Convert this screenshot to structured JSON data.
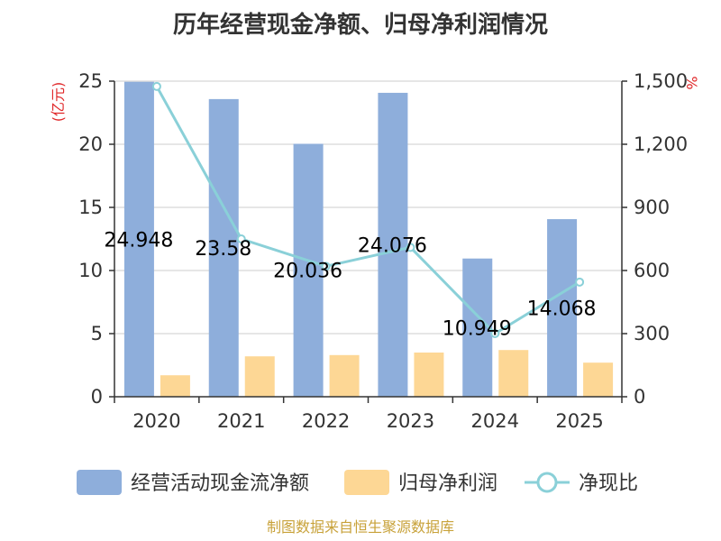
{
  "chart_data": {
    "type": "bar",
    "title": "历年经营现金净额、归母净利润情况",
    "categories": [
      "2020",
      "2021",
      "2022",
      "2023",
      "2024",
      "2025"
    ],
    "y_left": {
      "unit": "(亿元)",
      "range": [
        0,
        25
      ],
      "ticks": [
        "0",
        "5",
        "10",
        "15",
        "20",
        "25"
      ]
    },
    "y_right": {
      "unit": "%",
      "range": [
        0,
        1500
      ],
      "ticks": [
        "0",
        "300",
        "600",
        "900",
        "1,200",
        "1,500"
      ]
    },
    "series": [
      {
        "name": "经营活动现金流净额",
        "type": "bar",
        "axis": "left",
        "color": "#8eaedb",
        "values": [
          24.948,
          23.58,
          20.036,
          24.076,
          10.949,
          14.068
        ],
        "labels": [
          "24.948",
          "23.58",
          "20.036",
          "24.076",
          "10.949",
          "14.068"
        ]
      },
      {
        "name": "归母净利润",
        "type": "bar",
        "axis": "left",
        "color": "#fdd795",
        "values": [
          1.7,
          3.2,
          3.3,
          3.5,
          3.7,
          2.7
        ]
      },
      {
        "name": "净现比",
        "type": "line",
        "axis": "right",
        "color": "#8ad0d8",
        "values": [
          1475,
          750,
          620,
          710,
          300,
          545
        ]
      }
    ],
    "grid": true,
    "legend_position": "bottom"
  },
  "footer": {
    "source": "制图数据来自恒生聚源数据库"
  }
}
